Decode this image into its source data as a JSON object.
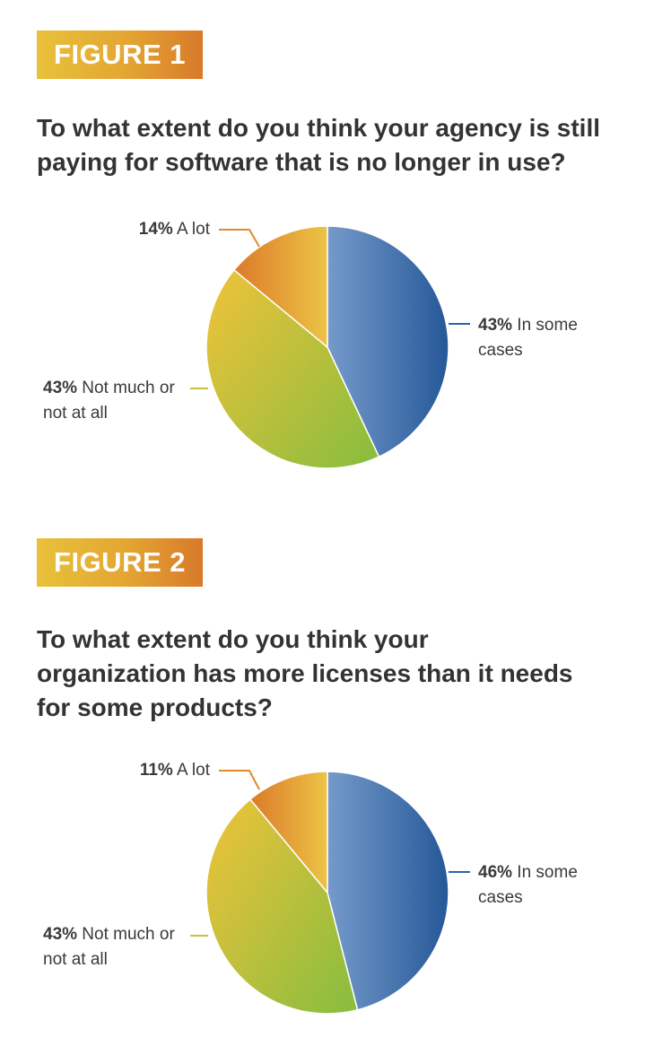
{
  "figures": [
    {
      "badge": "FIGURE 1",
      "question_lines": [
        "To what extent do you think your agency is still",
        "paying for software that is no longer in use?"
      ]
    },
    {
      "badge": "FIGURE 2",
      "question_lines": [
        "To what extent do you think your",
        "organization has more licenses than it needs",
        "for some products?"
      ]
    }
  ],
  "chart_data": [
    {
      "type": "pie",
      "title": "To what extent do you think your agency is still paying for software that is no longer in use?",
      "slices": [
        {
          "value": 43,
          "pct_text": "43%",
          "label_lines": [
            "In some",
            "cases"
          ],
          "color": "#2a64ad"
        },
        {
          "value": 43,
          "pct_text": "43%",
          "label_lines": [
            "Not much or",
            "not at all"
          ],
          "color": "#c8c23a"
        },
        {
          "value": 14,
          "pct_text": "14%",
          "label_lines": [
            "A lot"
          ],
          "color": "#e08a2c"
        }
      ]
    },
    {
      "type": "pie",
      "title": "To what extent do you think your organization has more licenses than it needs for some products?",
      "slices": [
        {
          "value": 46,
          "pct_text": "46%",
          "label_lines": [
            "In some",
            "cases"
          ],
          "color": "#2a64ad"
        },
        {
          "value": 43,
          "pct_text": "43%",
          "label_lines": [
            "Not much or",
            "not at all"
          ],
          "color": "#c8c23a"
        },
        {
          "value": 11,
          "pct_text": "11%",
          "label_lines": [
            "A lot"
          ],
          "color": "#e08a2c"
        }
      ]
    }
  ]
}
